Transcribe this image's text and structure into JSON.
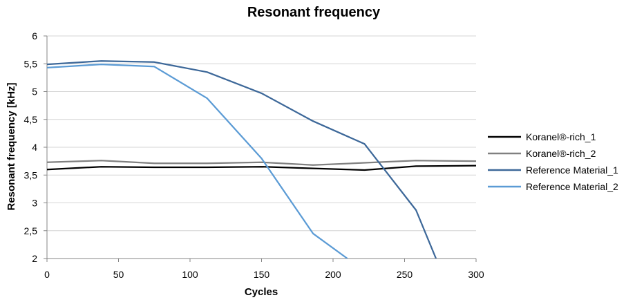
{
  "chart_data": {
    "type": "line",
    "title": "Resonant frequency",
    "xlabel": "Cycles",
    "ylabel": "Resonant frequency [kHz]",
    "xlim": [
      0,
      300
    ],
    "ylim": [
      2,
      6
    ],
    "x_ticks": [
      0,
      50,
      100,
      150,
      200,
      250,
      300
    ],
    "x_tick_labels": [
      "0",
      "50",
      "100",
      "150",
      "200",
      "250",
      "300"
    ],
    "y_ticks": [
      2,
      2.5,
      3,
      3.5,
      4,
      4.5,
      5,
      5.5,
      6
    ],
    "y_tick_labels": [
      "2",
      "2,5",
      "3",
      "3,5",
      "4",
      "4,5",
      "5",
      "5,5",
      "6"
    ],
    "grid": "horizontal",
    "legend_position": "right",
    "series": [
      {
        "name": "Koranel®-rich_1",
        "color": "#000000",
        "x": [
          0,
          38,
          75,
          112,
          150,
          186,
          222,
          258,
          300
        ],
        "y": [
          3.6,
          3.65,
          3.64,
          3.64,
          3.65,
          3.62,
          3.59,
          3.66,
          3.67
        ]
      },
      {
        "name": "Koranel®-rich_2",
        "color": "#808080",
        "x": [
          0,
          38,
          75,
          112,
          150,
          186,
          222,
          258,
          300
        ],
        "y": [
          3.73,
          3.76,
          3.71,
          3.71,
          3.73,
          3.68,
          3.72,
          3.76,
          3.75
        ]
      },
      {
        "name": "Reference Material_1",
        "color": "#3d6899",
        "x": [
          0,
          38,
          75,
          112,
          150,
          186,
          222,
          258,
          272
        ],
        "y": [
          5.49,
          5.55,
          5.53,
          5.35,
          4.97,
          4.47,
          4.06,
          2.87,
          2.0
        ]
      },
      {
        "name": "Reference Material_2",
        "color": "#5b9bd5",
        "x": [
          0,
          38,
          75,
          112,
          150,
          186,
          210
        ],
        "y": [
          5.43,
          5.49,
          5.45,
          4.88,
          3.8,
          2.45,
          2.0
        ]
      }
    ]
  }
}
